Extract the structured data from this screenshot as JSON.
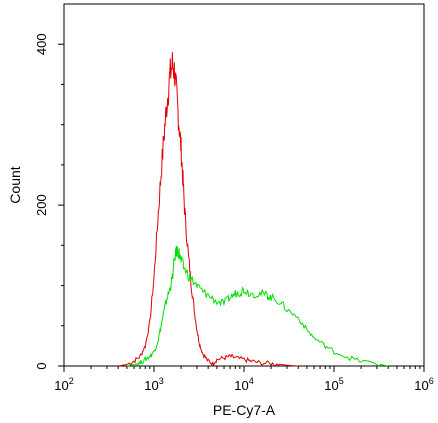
{
  "chart_data": {
    "type": "line",
    "title": "",
    "xlabel": "PE-Cy7-A",
    "ylabel": "Count",
    "x_scale": "log",
    "xlim": [
      100,
      1000000
    ],
    "ylim": [
      0,
      450
    ],
    "grid": false,
    "x_ticks": [
      {
        "value": 100,
        "base": "10",
        "exp": "2"
      },
      {
        "value": 1000,
        "base": "10",
        "exp": "3"
      },
      {
        "value": 10000,
        "base": "10",
        "exp": "4"
      },
      {
        "value": 100000,
        "base": "10",
        "exp": "5"
      },
      {
        "value": 1000000,
        "base": "10",
        "exp": "6"
      }
    ],
    "y_ticks": [
      {
        "value": 0,
        "label": "0"
      },
      {
        "value": 200,
        "label": "200"
      },
      {
        "value": 400,
        "label": "400"
      }
    ],
    "series": [
      {
        "color": "#e00000",
        "x": [
          400,
          500,
          600,
          700,
          800,
          900,
          1000,
          1100,
          1200,
          1300,
          1400,
          1500,
          1600,
          1700,
          1800,
          1900,
          2000,
          2100,
          2200,
          2400,
          2600,
          2800,
          3000,
          3200,
          3500,
          4000,
          4500,
          5000,
          6000,
          7000,
          8000,
          10000,
          12000,
          15000,
          20000,
          25000,
          30000,
          40000
        ],
        "y": [
          0,
          2,
          6,
          12,
          25,
          55,
          110,
          180,
          240,
          290,
          330,
          360,
          375,
          365,
          330,
          300,
          270,
          230,
          190,
          140,
          100,
          70,
          45,
          28,
          15,
          6,
          3,
          8,
          10,
          12,
          10,
          8,
          6,
          4,
          3,
          2,
          1,
          0
        ]
      },
      {
        "color": "#00dd00",
        "x": [
          500,
          600,
          700,
          800,
          900,
          1000,
          1100,
          1200,
          1300,
          1400,
          1500,
          1600,
          1700,
          1800,
          1900,
          2000,
          2200,
          2500,
          3000,
          3500,
          4000,
          5000,
          6000,
          7000,
          8000,
          9000,
          10000,
          12000,
          15000,
          18000,
          20000,
          25000,
          30000,
          40000,
          50000,
          60000,
          80000,
          100000,
          150000,
          200000,
          300000,
          400000
        ],
        "y": [
          0,
          2,
          4,
          8,
          12,
          18,
          30,
          50,
          70,
          85,
          95,
          110,
          135,
          145,
          140,
          130,
          120,
          110,
          100,
          92,
          88,
          80,
          78,
          85,
          90,
          92,
          95,
          90,
          90,
          88,
          85,
          80,
          70,
          60,
          45,
          35,
          25,
          18,
          10,
          6,
          3,
          0
        ]
      }
    ]
  }
}
